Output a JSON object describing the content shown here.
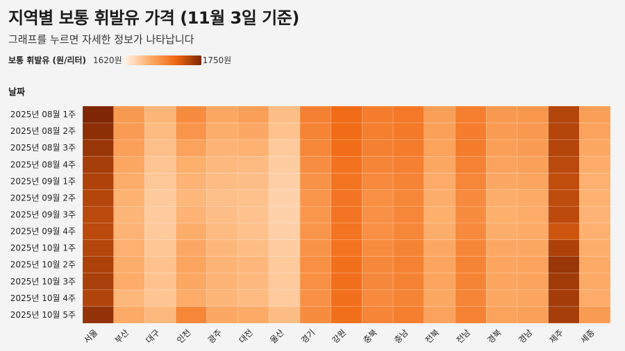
{
  "header": {
    "title": "지역별 보통 휘발유 가격 (11월 3일 기준)",
    "subtitle": "그래프를 누르면 자세한 정보가 나타납니다"
  },
  "legend": {
    "title": "보통 휘발유 (원/리터)",
    "min_label": "1620원",
    "max_label": "1750원",
    "colors": [
      "#fff5eb",
      "#fdae6b",
      "#f16913",
      "#7f2704"
    ]
  },
  "chart_data": {
    "type": "heatmap",
    "title": "지역별 보통 휘발유 가격 (11월 3일 기준)",
    "subtitle": "그래프를 누르면 자세한 정보가 나타납니다",
    "ylabel": "날짜",
    "color_scale": {
      "min": 1620,
      "max": 1750,
      "label": "보통 휘발유 (원/리터)"
    },
    "x": [
      "서울",
      "부산",
      "대구",
      "인천",
      "광주",
      "대전",
      "울산",
      "경기",
      "강원",
      "충북",
      "충남",
      "전북",
      "전남",
      "경북",
      "경남",
      "제주",
      "세종"
    ],
    "y": [
      "2025년 08월 1주",
      "2025년 08월 2주",
      "2025년 08월 3주",
      "2025년 08월 4주",
      "2025년 09월 1주",
      "2025년 09월 2주",
      "2025년 09월 3주",
      "2025년 09월 4주",
      "2025년 10월 1주",
      "2025년 10월 2주",
      "2025년 10월 3주",
      "2025년 10월 4주",
      "2025년 10월 5주"
    ],
    "values": [
      [
        1750,
        1676,
        1659,
        1685,
        1668,
        1673,
        1654,
        1692,
        1705,
        1694,
        1697,
        1673,
        1693,
        1677,
        1678,
        1730,
        1673
      ],
      [
        1745,
        1675,
        1656,
        1679,
        1664,
        1667,
        1651,
        1690,
        1705,
        1693,
        1696,
        1672,
        1694,
        1675,
        1677,
        1730,
        1670
      ],
      [
        1740,
        1672,
        1653,
        1670,
        1660,
        1661,
        1647,
        1688,
        1704,
        1692,
        1695,
        1671,
        1695,
        1673,
        1675,
        1730,
        1668
      ],
      [
        1735,
        1668,
        1650,
        1663,
        1657,
        1656,
        1645,
        1684,
        1701,
        1689,
        1692,
        1668,
        1691,
        1670,
        1672,
        1728,
        1665
      ],
      [
        1732,
        1664,
        1648,
        1660,
        1655,
        1654,
        1643,
        1681,
        1700,
        1686,
        1690,
        1665,
        1688,
        1667,
        1669,
        1725,
        1662
      ],
      [
        1730,
        1661,
        1647,
        1658,
        1653,
        1652,
        1642,
        1679,
        1699,
        1683,
        1688,
        1664,
        1686,
        1664,
        1666,
        1726,
        1661
      ],
      [
        1728,
        1659,
        1646,
        1660,
        1654,
        1651,
        1642,
        1678,
        1699,
        1682,
        1688,
        1663,
        1685,
        1663,
        1665,
        1727,
        1660
      ],
      [
        1727,
        1660,
        1647,
        1664,
        1656,
        1652,
        1643,
        1679,
        1700,
        1683,
        1688,
        1664,
        1686,
        1664,
        1666,
        1720,
        1662
      ],
      [
        1730,
        1662,
        1649,
        1667,
        1658,
        1655,
        1645,
        1681,
        1701,
        1685,
        1690,
        1667,
        1688,
        1667,
        1668,
        1733,
        1664
      ],
      [
        1733,
        1664,
        1651,
        1669,
        1660,
        1658,
        1647,
        1683,
        1702,
        1687,
        1691,
        1669,
        1690,
        1669,
        1670,
        1740,
        1666
      ],
      [
        1734,
        1665,
        1651,
        1668,
        1660,
        1657,
        1647,
        1683,
        1702,
        1687,
        1691,
        1669,
        1690,
        1669,
        1670,
        1737,
        1666
      ],
      [
        1731,
        1658,
        1650,
        1665,
        1659,
        1656,
        1646,
        1682,
        1702,
        1686,
        1690,
        1668,
        1689,
        1668,
        1669,
        1736,
        1665
      ],
      [
        1742,
        1666,
        1657,
        1688,
        1667,
        1666,
        1655,
        1685,
        1703,
        1689,
        1693,
        1670,
        1691,
        1671,
        1672,
        1735,
        1675
      ]
    ],
    "grid": false,
    "legend_placement": "top-left"
  }
}
